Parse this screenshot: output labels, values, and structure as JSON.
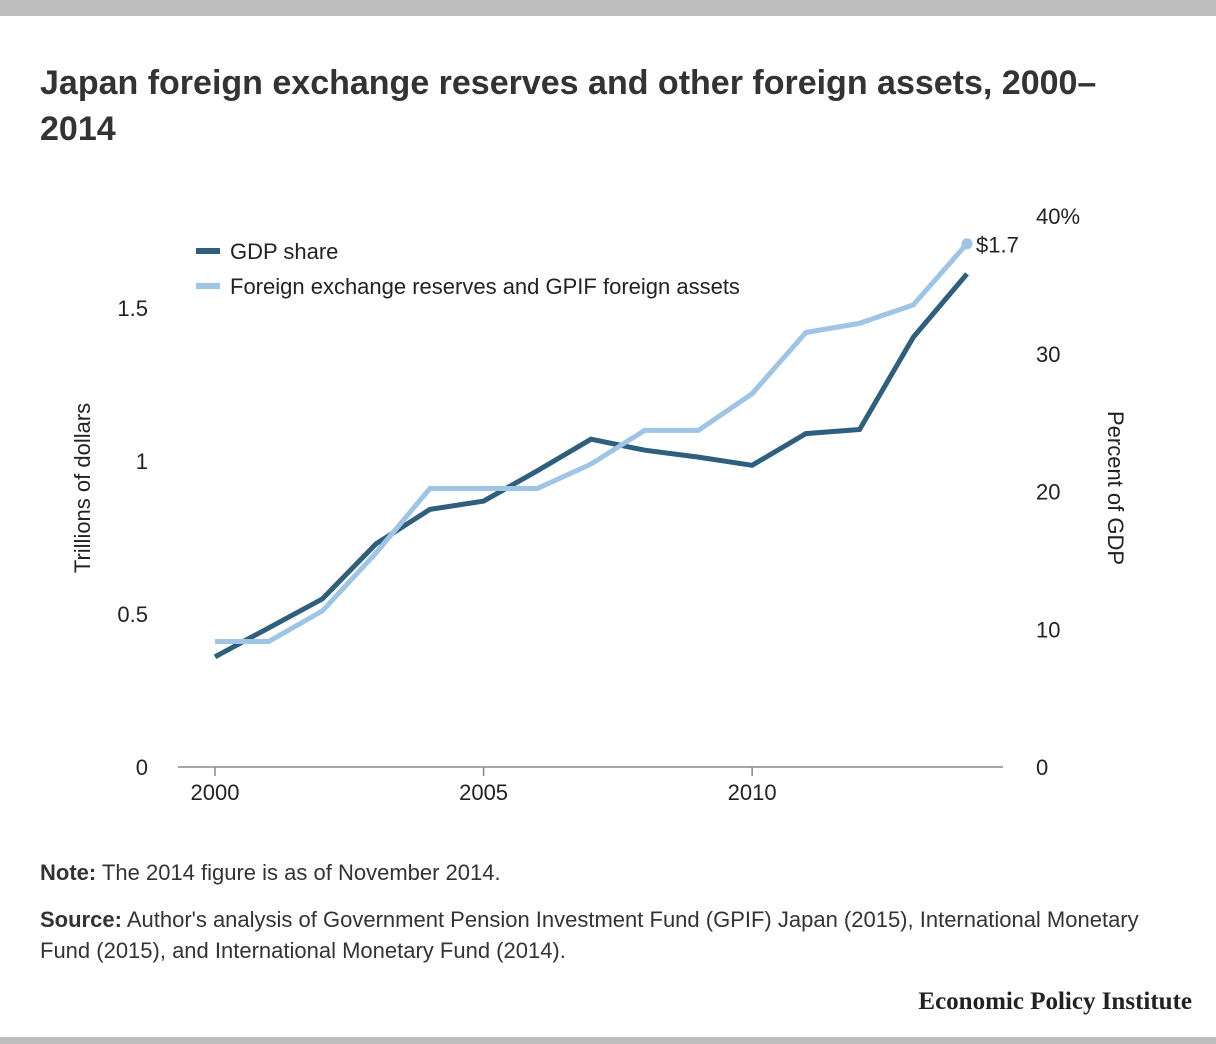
{
  "title": "Japan foreign exchange reserves and other foreign assets, 2000–2014",
  "note": {
    "label": "Note:",
    "text": " The 2014 figure is as of November 2014."
  },
  "source": {
    "label": "Source:",
    "text": " Author's analysis of Government Pension Investment Fund (GPIF) Japan (2015), International Monetary Fund (2015), and International Monetary Fund (2014)."
  },
  "brand": "Economic Policy Institute",
  "chart_data": {
    "type": "line",
    "x": [
      2000,
      2001,
      2002,
      2003,
      2004,
      2005,
      2006,
      2007,
      2008,
      2009,
      2010,
      2011,
      2012,
      2013,
      2014
    ],
    "x_ticks": [
      "2000",
      "2005",
      "2010"
    ],
    "xlim": [
      1999.3,
      2014.7
    ],
    "y_left": {
      "label": "Trillions of dollars",
      "ticks": [
        "0",
        "0.5",
        "1",
        "1.5"
      ],
      "lim": [
        0,
        1.8
      ]
    },
    "y_right": {
      "label": "Percent of GDP",
      "ticks": [
        "0",
        "10",
        "20",
        "30",
        "40%"
      ],
      "lim": [
        0,
        40
      ]
    },
    "series": [
      {
        "name": "GDP share",
        "axis": "right",
        "color": "#2e5f7d",
        "values": [
          8.0,
          10.1,
          12.2,
          16.2,
          18.7,
          19.3,
          21.5,
          23.8,
          23.0,
          22.5,
          21.9,
          24.2,
          24.5,
          31.2,
          35.8
        ]
      },
      {
        "name": "Foreign exchange reserves and GPIF foreign assets",
        "axis": "left",
        "color": "#9ec4e6",
        "values": [
          0.41,
          0.41,
          0.51,
          0.7,
          0.91,
          0.91,
          0.91,
          0.99,
          1.1,
          1.1,
          1.22,
          1.42,
          1.45,
          1.51,
          1.71
        ]
      }
    ],
    "annotation": {
      "text": "$1.7",
      "series": 1,
      "index": 14
    },
    "legend_position": "top-left"
  }
}
